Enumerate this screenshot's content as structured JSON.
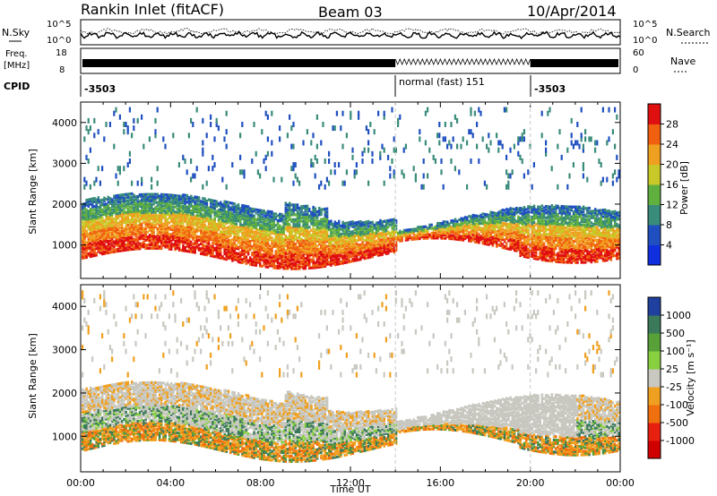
{
  "header": {
    "station": "Rankin Inlet (fitACF)",
    "beam": "Beam 03",
    "date": "10/Apr/2014"
  },
  "noise_panel": {
    "left_label": "N.Sky",
    "right_label": "N.Search",
    "right_ticks": [
      "10^5",
      "10^0"
    ],
    "left_ticks": [
      "10^5",
      "10^0"
    ]
  },
  "freq_panel": {
    "left_label_1": "Freq.",
    "left_label_2": "[MHz]",
    "left_ticks": [
      "18",
      "8"
    ],
    "right_label": "Nave",
    "right_ticks": [
      "60",
      "0"
    ]
  },
  "cpid": {
    "label": "CPID",
    "segments": [
      {
        "text": "-3503",
        "start_h": 0
      },
      {
        "text": "normal (fast) 151",
        "start_h": 14
      },
      {
        "text": "-3503",
        "start_h": 20
      }
    ]
  },
  "chart_data": [
    {
      "type": "heatmap",
      "name": "power-panel",
      "ylabel": "Slant Range [km]",
      "xlabel": "",
      "y_ticks": [
        "1000",
        "2000",
        "3000",
        "4000"
      ],
      "ylim": [
        180,
        4500
      ],
      "colorbar": {
        "label": "Power [dB]",
        "ticks": [
          "4",
          "8",
          "12",
          "16",
          "20",
          "24",
          "28"
        ],
        "colors": [
          "#1030e0",
          "#2050c0",
          "#3a8c7a",
          "#60b040",
          "#c8c828",
          "#f0a020",
          "#f06010",
          "#e01010"
        ]
      },
      "mode_change_times_h": [
        14,
        20
      ]
    },
    {
      "type": "heatmap",
      "name": "velocity-panel",
      "ylabel": "Slant Range [km]",
      "xlabel": "Time UT",
      "x_ticks": [
        "00:00",
        "04:00",
        "08:00",
        "12:00",
        "16:00",
        "20:00",
        "00:00"
      ],
      "xlim_h": [
        0,
        24
      ],
      "y_ticks": [
        "1000",
        "2000",
        "3000",
        "4000"
      ],
      "ylim": [
        180,
        4500
      ],
      "colorbar": {
        "label": "Velocity [m s⁻¹]",
        "ticks": [
          "1000",
          "500",
          "100",
          "25",
          "-25",
          "-100",
          "-500",
          "-1000"
        ],
        "colors": [
          "#2040a0",
          "#3a7a5a",
          "#58a038",
          "#88d040",
          "#c8c8c0",
          "#f0a020",
          "#f07010",
          "#e82010",
          "#d00000"
        ]
      },
      "mode_change_times_h": [
        14,
        20
      ]
    }
  ]
}
